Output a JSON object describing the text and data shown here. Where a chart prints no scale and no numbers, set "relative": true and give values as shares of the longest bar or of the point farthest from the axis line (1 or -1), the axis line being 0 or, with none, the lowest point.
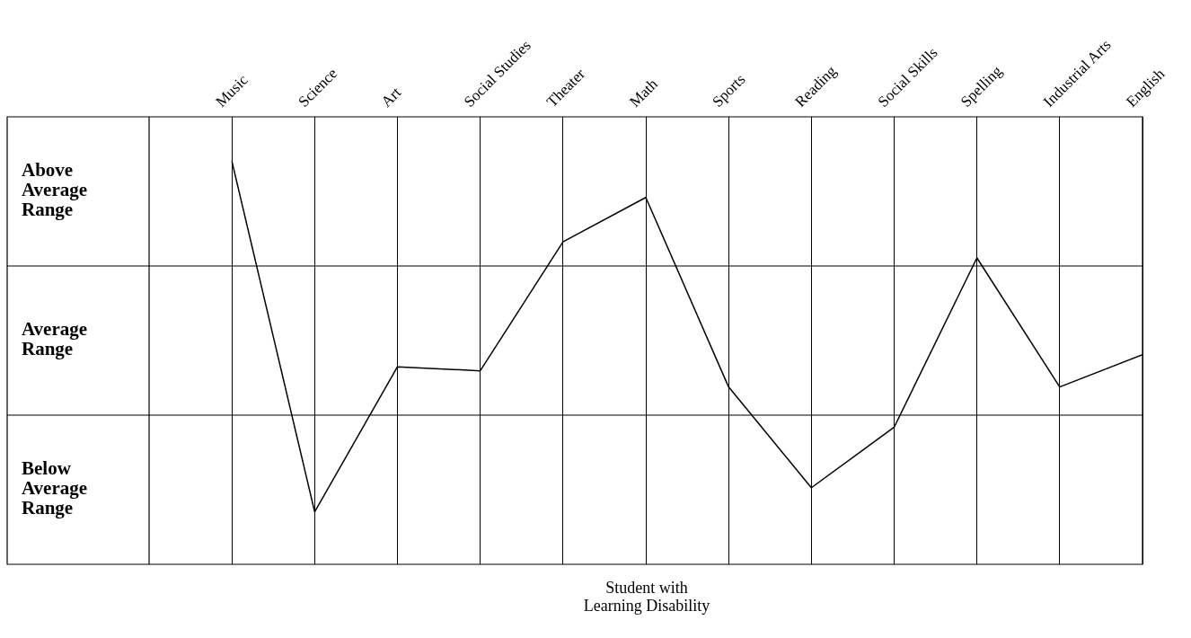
{
  "chart_data": {
    "type": "line",
    "relative": true,
    "xlabel": "Student with Learning Disability",
    "categories": [
      "Music",
      "Science",
      "Art",
      "Social Studies",
      "Theater",
      "Math",
      "Sports",
      "Reading",
      "Social Skills",
      "Spelling",
      "Industrial Arts",
      "English"
    ],
    "values": [
      1,
      0.13,
      0.49,
      0.48,
      0.8,
      0.91,
      0.44,
      0.19,
      0.34,
      0.76,
      0.44,
      0.52
    ],
    "color": "#000000",
    "marker": "none",
    "grid": "x",
    "ylim": [
      0,
      1.11
    ],
    "ref_lines": [
      {
        "axis": "y",
        "value": 0.37,
        "color": "#000000"
      },
      {
        "axis": "y",
        "value": 0.74,
        "color": "#000000"
      }
    ],
    "annotations": [
      "Above Average Range",
      "Average Range",
      "Below Average Range"
    ]
  }
}
